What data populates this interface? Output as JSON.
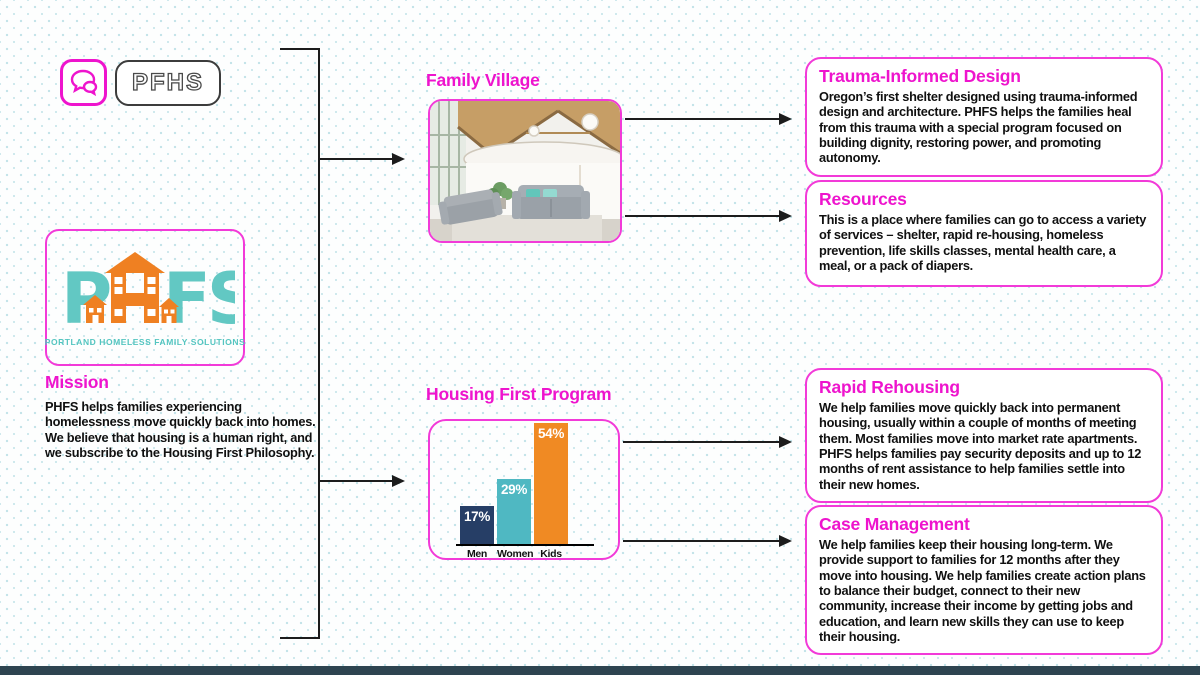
{
  "colors": {
    "accent_magenta": "#ee14cd",
    "border_magenta": "#f23ad8",
    "logo_teal": "#62c8c3",
    "logo_orange": "#ef8022",
    "dot_pattern": "#c4e4e9",
    "bottom_bar": "#2e4450",
    "connector_line": "#1c1c1c"
  },
  "header": {
    "chip_label": "PFHS"
  },
  "logo": {
    "letter_p": "P",
    "letter_fs": "FS",
    "tagline": "PORTLAND HOMELESS FAMILY SOLUTIONS"
  },
  "mission": {
    "title": "Mission",
    "body": "PHFS helps families experiencing homelessness move quickly back into homes. We believe that housing is a human right, and we subscribe to the Housing First Philosophy."
  },
  "sections": {
    "family_village_title": "Family Village",
    "housing_first_title": "Housing First Program"
  },
  "chart_data": {
    "type": "bar",
    "title": "Housing First Program",
    "categories": [
      "Men",
      "Women",
      "Kids"
    ],
    "values": [
      17,
      29,
      54
    ],
    "value_labels": [
      "17%",
      "29%",
      "54%"
    ],
    "bar_colors": [
      "#263e66",
      "#4fb8c2",
      "#f08a23"
    ],
    "ylim": [
      0,
      60
    ],
    "grid": false,
    "legend": "none"
  },
  "cards": [
    {
      "title": "Trauma-Informed Design",
      "body": "Oregon’s first shelter designed using trauma-informed design and architecture. PHFS helps the families heal from this trauma with a special program focused on building dignity, restoring power, and promoting autonomy."
    },
    {
      "title": "Resources",
      "body": "This is a place where families can go to access a variety of services – shelter, rapid re-housing, homeless prevention, life skills classes, mental health care, a meal, or a pack of diapers."
    },
    {
      "title": "Rapid Rehousing",
      "body": "We help families move quickly back into permanent housing, usually within a couple of months of meeting them. Most families move into market rate apartments. PHFS helps families pay security deposits and up to 12 months of rent assistance to help families settle into their new homes."
    },
    {
      "title": "Case Management",
      "body": "We help families keep their housing long-term. We provide support to families for 12 months after they move into housing. We help families create action plans to balance their budget, connect to their new community, increase their income by getting jobs and education, and learn new skills they can use to keep their housing."
    }
  ]
}
